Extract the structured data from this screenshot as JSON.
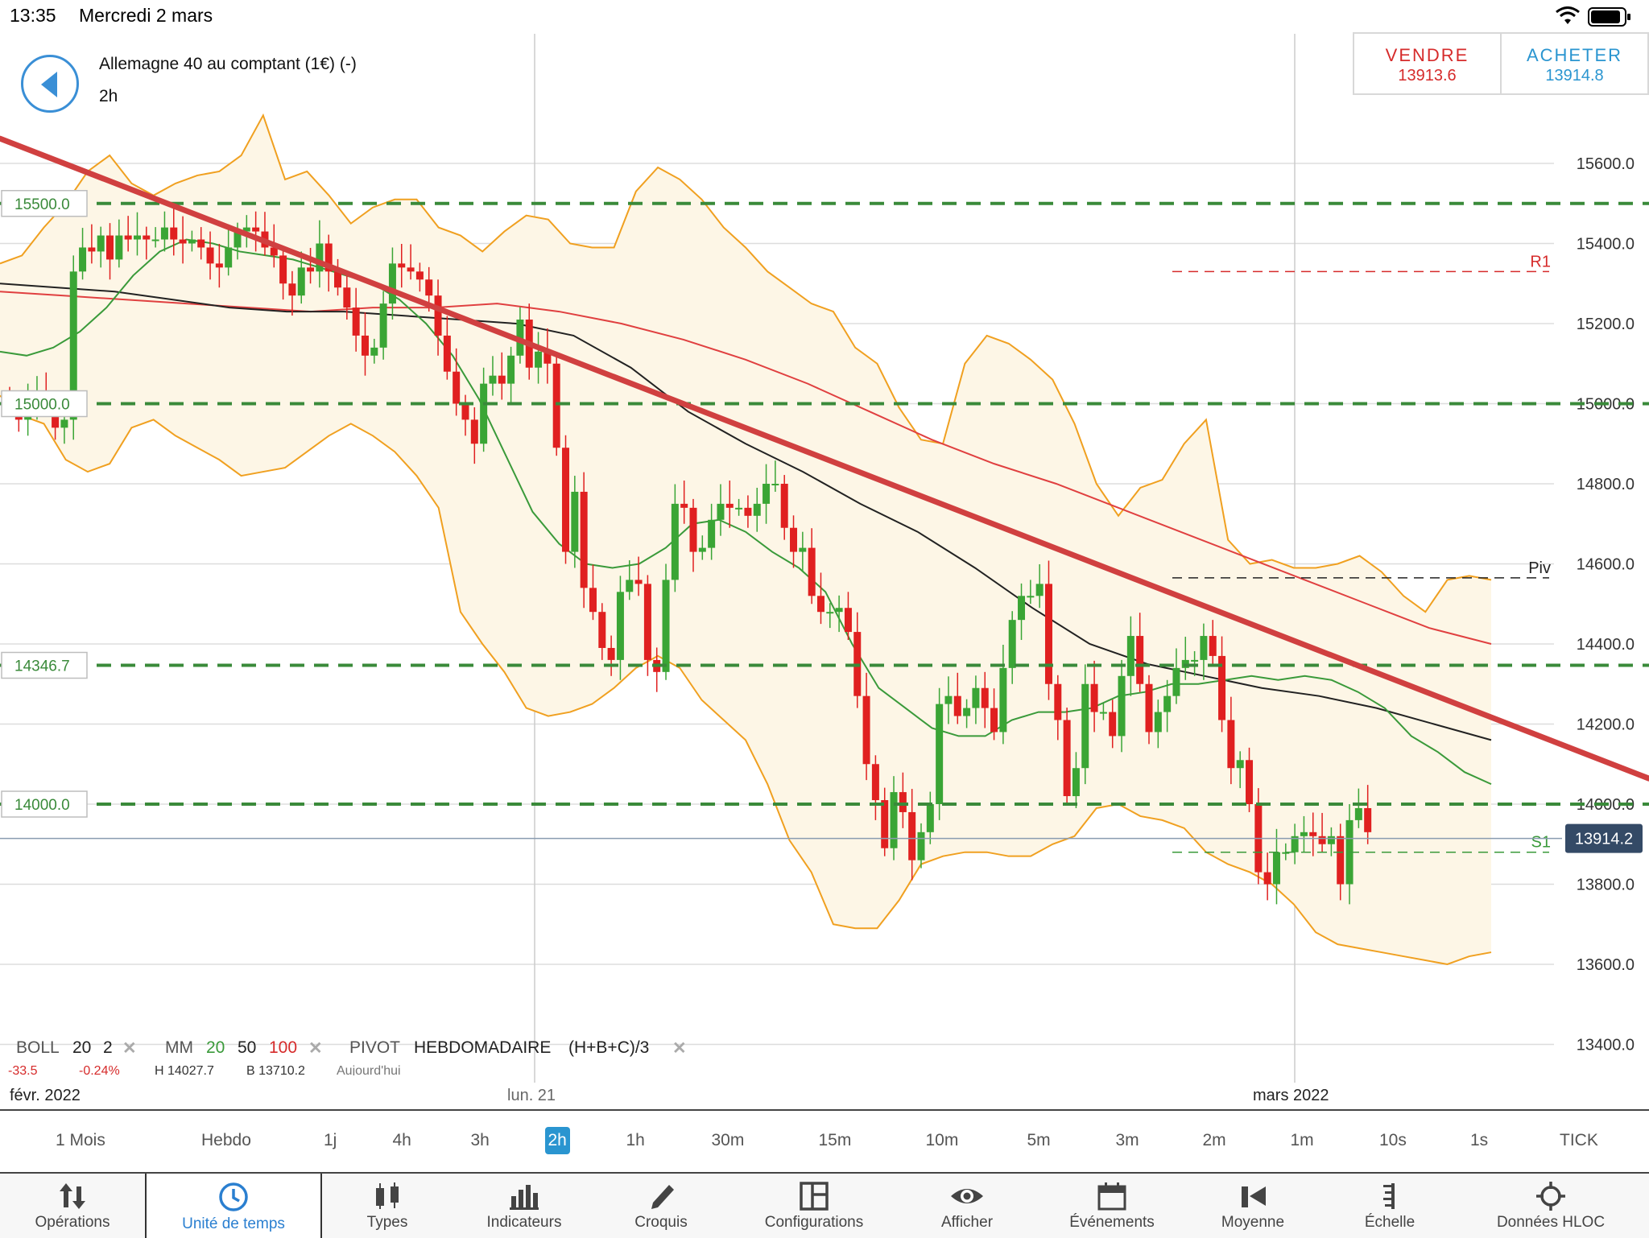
{
  "status_bar": {
    "time": "13:35",
    "date": "Mercredi 2 mars"
  },
  "instrument": {
    "title": "Allemagne 40 au comptant (1€) (-)",
    "timeframe": "2h"
  },
  "trade": {
    "sell_label": "VENDRE",
    "sell_price": "13913.6",
    "buy_label": "ACHETER",
    "buy_price": "13914.8"
  },
  "chart_data": {
    "type": "candlestick",
    "title": "",
    "ylim": [
      13320,
      15800
    ],
    "y_ticks": [
      15600,
      15400,
      15200,
      15000,
      14800,
      14600,
      14400,
      14200,
      14000,
      13800,
      13600,
      13400
    ],
    "y_tick_labels": [
      "15600.0",
      "15400.0",
      "15200.0",
      "15000.0",
      "14800.0",
      "14600.0",
      "14400.0",
      "14200.0",
      "14000.0",
      "13800.0",
      "13600.0",
      "13400.0"
    ],
    "x_labels": [
      "févr. 2022",
      "lun. 21",
      "mars 2022"
    ],
    "current_price": 13914.2,
    "current_price_label": "13914.2",
    "horizontal_levels": [
      {
        "value": 15500,
        "label": "15500.0"
      },
      {
        "value": 15000,
        "label": "15000.0"
      },
      {
        "value": 14346.7,
        "label": "14346.7"
      },
      {
        "value": 14000,
        "label": "14000.0"
      }
    ],
    "pivots": [
      {
        "name": "R1",
        "value": 15330,
        "color": "#d62b2b"
      },
      {
        "name": "Piv",
        "value": 14565,
        "color": "#222222"
      },
      {
        "name": "S1",
        "value": 13880,
        "color": "#3a9a3a"
      }
    ],
    "trendline": {
      "start": [
        0,
        15650
      ],
      "end": [
        125,
        14070
      ],
      "color": "#d04040"
    },
    "candles_c": [
      15000,
      14960,
      15010,
      15020,
      15010,
      14940,
      14960,
      15330,
      15390,
      15380,
      15420,
      15360,
      15420,
      15410,
      15420,
      15410,
      15410,
      15440,
      15410,
      15400,
      15410,
      15390,
      15350,
      15340,
      15390,
      15430,
      15440,
      15430,
      15390,
      15370,
      15300,
      15270,
      15340,
      15330,
      15400,
      15330,
      15290,
      15240,
      15170,
      15120,
      15140,
      15250,
      15350,
      15340,
      15330,
      15310,
      15270,
      15170,
      15080,
      15000,
      14960,
      14900,
      15050,
      15070,
      15050,
      15120,
      15210,
      15090,
      15130,
      15100,
      14890,
      14630,
      14780,
      14540,
      14480,
      14390,
      14360,
      14530,
      14560,
      14550,
      14360,
      14330,
      14560,
      14750,
      14740,
      14630,
      14640,
      14710,
      14750,
      14740,
      14740,
      14720,
      14750,
      14800,
      14800,
      14690,
      14630,
      14640,
      14520,
      14480,
      14480,
      14490,
      14430,
      14270,
      14100,
      14010,
      13890,
      14030,
      13980,
      13860,
      13930,
      14000,
      14250,
      14270,
      14220,
      14240,
      14290,
      14240,
      14180,
      14340,
      14460,
      14520,
      14520,
      14550,
      14300,
      14210,
      14020,
      14090,
      14300,
      14230,
      14230,
      14170,
      14320,
      14420,
      14300,
      14180,
      14230,
      14270,
      14340,
      14360,
      14360,
      14420,
      14370,
      14210,
      14090,
      14110,
      14000,
      13830,
      13800,
      13880,
      13880,
      13920,
      13930,
      13920,
      13900,
      13920,
      13800,
      13960,
      13990,
      13930
    ],
    "bollinger_upper": [
      15350,
      15370,
      15440,
      15500,
      15580,
      15620,
      15550,
      15520,
      15550,
      15570,
      15580,
      15620,
      15720,
      15560,
      15580,
      15520,
      15450,
      15490,
      15510,
      15510,
      15440,
      15420,
      15380,
      15430,
      15470,
      15460,
      15400,
      15390,
      15390,
      15530,
      15590,
      15560,
      15510,
      15440,
      15390,
      15330,
      15290,
      15250,
      15230,
      15140,
      15100,
      14990,
      14910,
      14900,
      15100,
      15170,
      15150,
      15110,
      15060,
      14950,
      14800,
      14720,
      14790,
      14810,
      14900,
      14960,
      14660,
      14600,
      14610,
      14590,
      14590,
      14600,
      14620,
      14580,
      14520,
      14480,
      14560,
      14570,
      14560
    ],
    "bollinger_lower": [
      15020,
      14970,
      14950,
      14860,
      14830,
      14850,
      14940,
      14960,
      14920,
      14890,
      14860,
      14820,
      14830,
      14840,
      14880,
      14920,
      14950,
      14920,
      14880,
      14820,
      14740,
      14480,
      14400,
      14330,
      14240,
      14220,
      14230,
      14250,
      14290,
      14340,
      14370,
      14340,
      14260,
      14210,
      14160,
      14050,
      13910,
      13830,
      13700,
      13690,
      13690,
      13760,
      13850,
      13870,
      13880,
      13880,
      13870,
      13870,
      13900,
      13920,
      13990,
      14000,
      13970,
      13960,
      13940,
      13880,
      13850,
      13830,
      13800,
      13750,
      13680,
      13650,
      13640,
      13630,
      13620,
      13610,
      13600,
      13620,
      13630
    ],
    "ma20": [
      15130,
      15120,
      15140,
      15180,
      15240,
      15320,
      15380,
      15410,
      15400,
      15380,
      15370,
      15360,
      15340,
      15320,
      15300,
      15260,
      15200,
      15120,
      15010,
      14870,
      14730,
      14650,
      14600,
      14590,
      14600,
      14640,
      14700,
      14710,
      14680,
      14630,
      14590,
      14530,
      14400,
      14290,
      14240,
      14190,
      14170,
      14170,
      14210,
      14230,
      14230,
      14240,
      14270,
      14280,
      14300,
      14300,
      14310,
      14320,
      14310,
      14320,
      14310,
      14280,
      14240,
      14170,
      14130,
      14080,
      14050
    ],
    "ma50": [
      15300,
      15290,
      15280,
      15260,
      15240,
      15230,
      15230,
      15220,
      15210,
      15200,
      15170,
      15090,
      14980,
      14900,
      14830,
      14750,
      14680,
      14590,
      14490,
      14400,
      14350,
      14320,
      14290,
      14270,
      14240,
      14200,
      14160
    ],
    "ma100": [
      15280,
      15270,
      15260,
      15250,
      15240,
      15230,
      15240,
      15240,
      15250,
      15230,
      15200,
      15160,
      15110,
      15050,
      14980,
      14910,
      14850,
      14800,
      14740,
      14680,
      14620,
      14560,
      14500,
      14440,
      14400
    ]
  },
  "legend": {
    "boll_label": "BOLL",
    "boll_period": "20",
    "boll_dev": "2",
    "ma_label": "MM",
    "ma_20": "20",
    "ma_50": "50",
    "ma_100": "100",
    "pivot_label": "PIVOT",
    "pivot_period": "HEBDOMADAIRE",
    "pivot_formula": "(H+B+C)/3",
    "change": "-33.5",
    "change_pct": "-0.24%",
    "high": "H 14027.7",
    "low": "B 13710.2",
    "session": "Aujourd'hui"
  },
  "timeframes": [
    "1 Mois",
    "Hebdo",
    "1j",
    "4h",
    "3h",
    "2h",
    "1h",
    "30m",
    "15m",
    "10m",
    "5m",
    "3m",
    "2m",
    "1m",
    "10s",
    "1s",
    "TICK"
  ],
  "active_timeframe": "2h",
  "toolbar": [
    {
      "label": "Opérations",
      "icon": "transfer-arrows-icon"
    },
    {
      "label": "Unité de temps",
      "icon": "clock-icon"
    },
    {
      "label": "Types",
      "icon": "candlestick-icon"
    },
    {
      "label": "Indicateurs",
      "icon": "bar-chart-icon"
    },
    {
      "label": "Croquis",
      "icon": "pencil-icon"
    },
    {
      "label": "Configurations",
      "icon": "layout-icon"
    },
    {
      "label": "Afficher",
      "icon": "eye-icon"
    },
    {
      "label": "Événements",
      "icon": "calendar-icon"
    },
    {
      "label": "Moyenne",
      "icon": "average-icon"
    },
    {
      "label": "Échelle",
      "icon": "scale-icon"
    },
    {
      "label": "Données HLOC",
      "icon": "crosshair-icon"
    }
  ],
  "colors": {
    "up": "#3aa535",
    "down": "#e02020",
    "accent": "#2a95d0",
    "bollinger": "#f0a020",
    "ma20": "#3a9a3a",
    "ma50": "#222222",
    "ma100": "#e04040",
    "level": "#3a8a3a"
  }
}
